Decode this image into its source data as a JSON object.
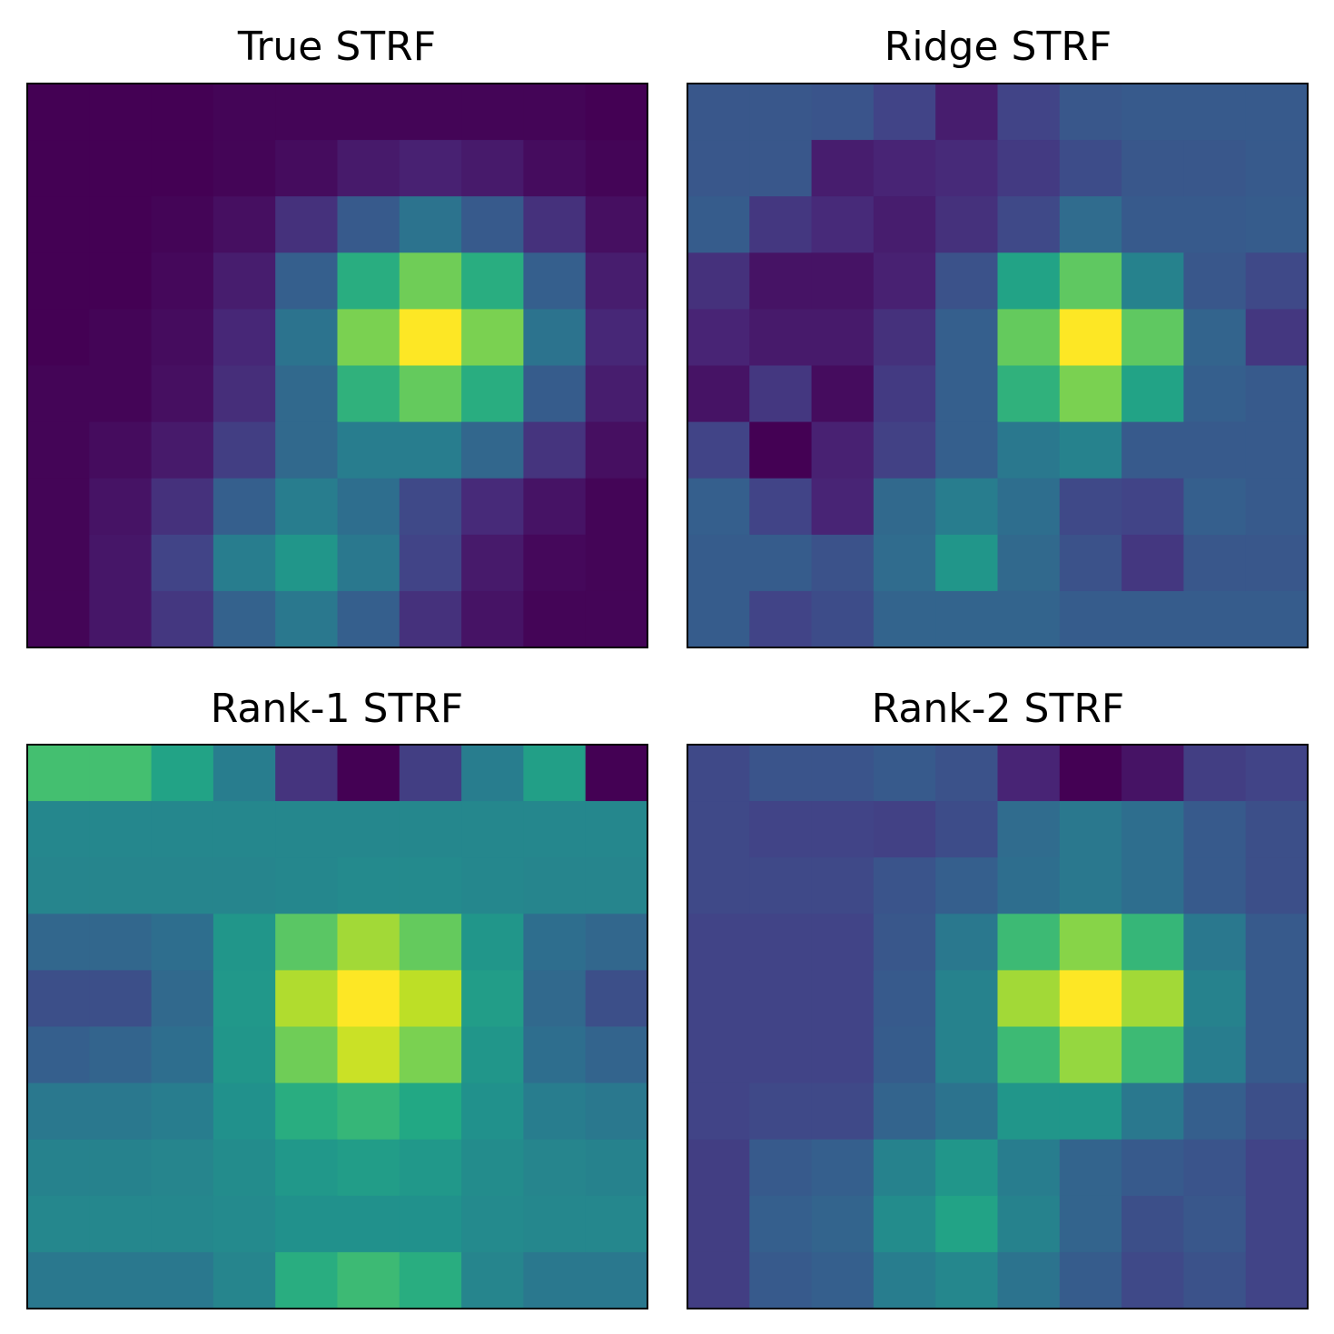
{
  "figure": {
    "colormap": "viridis",
    "background": "#ffffff",
    "frame_color": "#000000",
    "axis_ticks": false
  },
  "chart_data": [
    {
      "type": "heatmap",
      "title": "True STRF",
      "rows": 10,
      "cols": 10,
      "vmin": 0,
      "vmax": 1,
      "values": [
        [
          0.0,
          0.0,
          0.0,
          0.01,
          0.01,
          0.01,
          0.01,
          0.01,
          0.01,
          0.0
        ],
        [
          0.0,
          0.0,
          0.0,
          0.01,
          0.03,
          0.07,
          0.09,
          0.07,
          0.03,
          0.01
        ],
        [
          0.0,
          0.0,
          0.01,
          0.04,
          0.14,
          0.28,
          0.38,
          0.28,
          0.14,
          0.04
        ],
        [
          0.0,
          0.0,
          0.02,
          0.08,
          0.3,
          0.62,
          0.78,
          0.62,
          0.3,
          0.08
        ],
        [
          0.0,
          0.01,
          0.03,
          0.11,
          0.38,
          0.8,
          1.0,
          0.8,
          0.38,
          0.11
        ],
        [
          0.01,
          0.01,
          0.04,
          0.13,
          0.34,
          0.64,
          0.76,
          0.62,
          0.29,
          0.08
        ],
        [
          0.01,
          0.03,
          0.07,
          0.18,
          0.34,
          0.42,
          0.42,
          0.33,
          0.15,
          0.04
        ],
        [
          0.01,
          0.05,
          0.14,
          0.3,
          0.42,
          0.36,
          0.22,
          0.12,
          0.05,
          0.01
        ],
        [
          0.01,
          0.06,
          0.2,
          0.42,
          0.52,
          0.4,
          0.2,
          0.07,
          0.02,
          0.01
        ],
        [
          0.01,
          0.06,
          0.16,
          0.31,
          0.4,
          0.3,
          0.14,
          0.05,
          0.01,
          0.01
        ]
      ]
    },
    {
      "type": "heatmap",
      "title": "Ridge STRF",
      "rows": 10,
      "cols": 10,
      "vmin": 0,
      "vmax": 1,
      "values": [
        [
          0.27,
          0.27,
          0.26,
          0.2,
          0.08,
          0.2,
          0.27,
          0.28,
          0.28,
          0.28
        ],
        [
          0.27,
          0.27,
          0.08,
          0.1,
          0.12,
          0.17,
          0.23,
          0.27,
          0.27,
          0.28
        ],
        [
          0.29,
          0.16,
          0.12,
          0.08,
          0.14,
          0.22,
          0.35,
          0.28,
          0.28,
          0.29
        ],
        [
          0.14,
          0.05,
          0.05,
          0.09,
          0.25,
          0.58,
          0.75,
          0.44,
          0.27,
          0.22
        ],
        [
          0.1,
          0.07,
          0.07,
          0.14,
          0.3,
          0.76,
          1.0,
          0.75,
          0.32,
          0.16
        ],
        [
          0.05,
          0.16,
          0.03,
          0.17,
          0.3,
          0.64,
          0.8,
          0.58,
          0.3,
          0.28
        ],
        [
          0.2,
          0.0,
          0.09,
          0.19,
          0.3,
          0.4,
          0.44,
          0.28,
          0.28,
          0.28
        ],
        [
          0.3,
          0.2,
          0.1,
          0.34,
          0.42,
          0.36,
          0.22,
          0.2,
          0.3,
          0.28
        ],
        [
          0.29,
          0.29,
          0.25,
          0.35,
          0.52,
          0.34,
          0.25,
          0.16,
          0.27,
          0.27
        ],
        [
          0.29,
          0.2,
          0.23,
          0.32,
          0.32,
          0.32,
          0.29,
          0.29,
          0.29,
          0.29
        ]
      ]
    },
    {
      "type": "heatmap",
      "title": "Rank-1 STRF",
      "rows": 10,
      "cols": 10,
      "vmin": 0,
      "vmax": 1,
      "values": [
        [
          0.7,
          0.7,
          0.58,
          0.42,
          0.15,
          0.0,
          0.18,
          0.42,
          0.56,
          0.0
        ],
        [
          0.46,
          0.46,
          0.46,
          0.46,
          0.46,
          0.46,
          0.46,
          0.46,
          0.46,
          0.46
        ],
        [
          0.45,
          0.45,
          0.45,
          0.45,
          0.46,
          0.47,
          0.47,
          0.46,
          0.45,
          0.45
        ],
        [
          0.33,
          0.33,
          0.36,
          0.52,
          0.74,
          0.86,
          0.76,
          0.52,
          0.36,
          0.33
        ],
        [
          0.24,
          0.24,
          0.34,
          0.53,
          0.88,
          1.0,
          0.9,
          0.55,
          0.34,
          0.24
        ],
        [
          0.3,
          0.32,
          0.36,
          0.52,
          0.78,
          0.92,
          0.8,
          0.52,
          0.36,
          0.32
        ],
        [
          0.4,
          0.4,
          0.42,
          0.5,
          0.62,
          0.66,
          0.6,
          0.5,
          0.42,
          0.4
        ],
        [
          0.44,
          0.44,
          0.45,
          0.48,
          0.53,
          0.55,
          0.53,
          0.48,
          0.45,
          0.44
        ],
        [
          0.46,
          0.46,
          0.46,
          0.47,
          0.5,
          0.5,
          0.5,
          0.47,
          0.46,
          0.46
        ],
        [
          0.4,
          0.4,
          0.4,
          0.45,
          0.62,
          0.68,
          0.62,
          0.45,
          0.4,
          0.4
        ]
      ]
    },
    {
      "type": "heatmap",
      "title": "Rank-2 STRF",
      "rows": 10,
      "cols": 10,
      "vmin": 0,
      "vmax": 1,
      "values": [
        [
          0.22,
          0.26,
          0.26,
          0.28,
          0.25,
          0.1,
          0.0,
          0.05,
          0.18,
          0.2
        ],
        [
          0.22,
          0.2,
          0.2,
          0.19,
          0.23,
          0.35,
          0.4,
          0.36,
          0.28,
          0.24
        ],
        [
          0.22,
          0.22,
          0.22,
          0.26,
          0.3,
          0.36,
          0.4,
          0.36,
          0.28,
          0.24
        ],
        [
          0.2,
          0.2,
          0.2,
          0.27,
          0.4,
          0.68,
          0.82,
          0.66,
          0.4,
          0.28
        ],
        [
          0.2,
          0.2,
          0.2,
          0.28,
          0.44,
          0.86,
          1.0,
          0.86,
          0.44,
          0.28
        ],
        [
          0.2,
          0.2,
          0.2,
          0.29,
          0.44,
          0.68,
          0.84,
          0.68,
          0.42,
          0.28
        ],
        [
          0.2,
          0.22,
          0.22,
          0.32,
          0.38,
          0.52,
          0.52,
          0.4,
          0.3,
          0.24
        ],
        [
          0.18,
          0.28,
          0.3,
          0.44,
          0.52,
          0.42,
          0.32,
          0.28,
          0.26,
          0.2
        ],
        [
          0.18,
          0.3,
          0.32,
          0.48,
          0.58,
          0.44,
          0.32,
          0.24,
          0.27,
          0.2
        ],
        [
          0.18,
          0.28,
          0.3,
          0.42,
          0.46,
          0.38,
          0.29,
          0.22,
          0.25,
          0.2
        ]
      ]
    }
  ]
}
